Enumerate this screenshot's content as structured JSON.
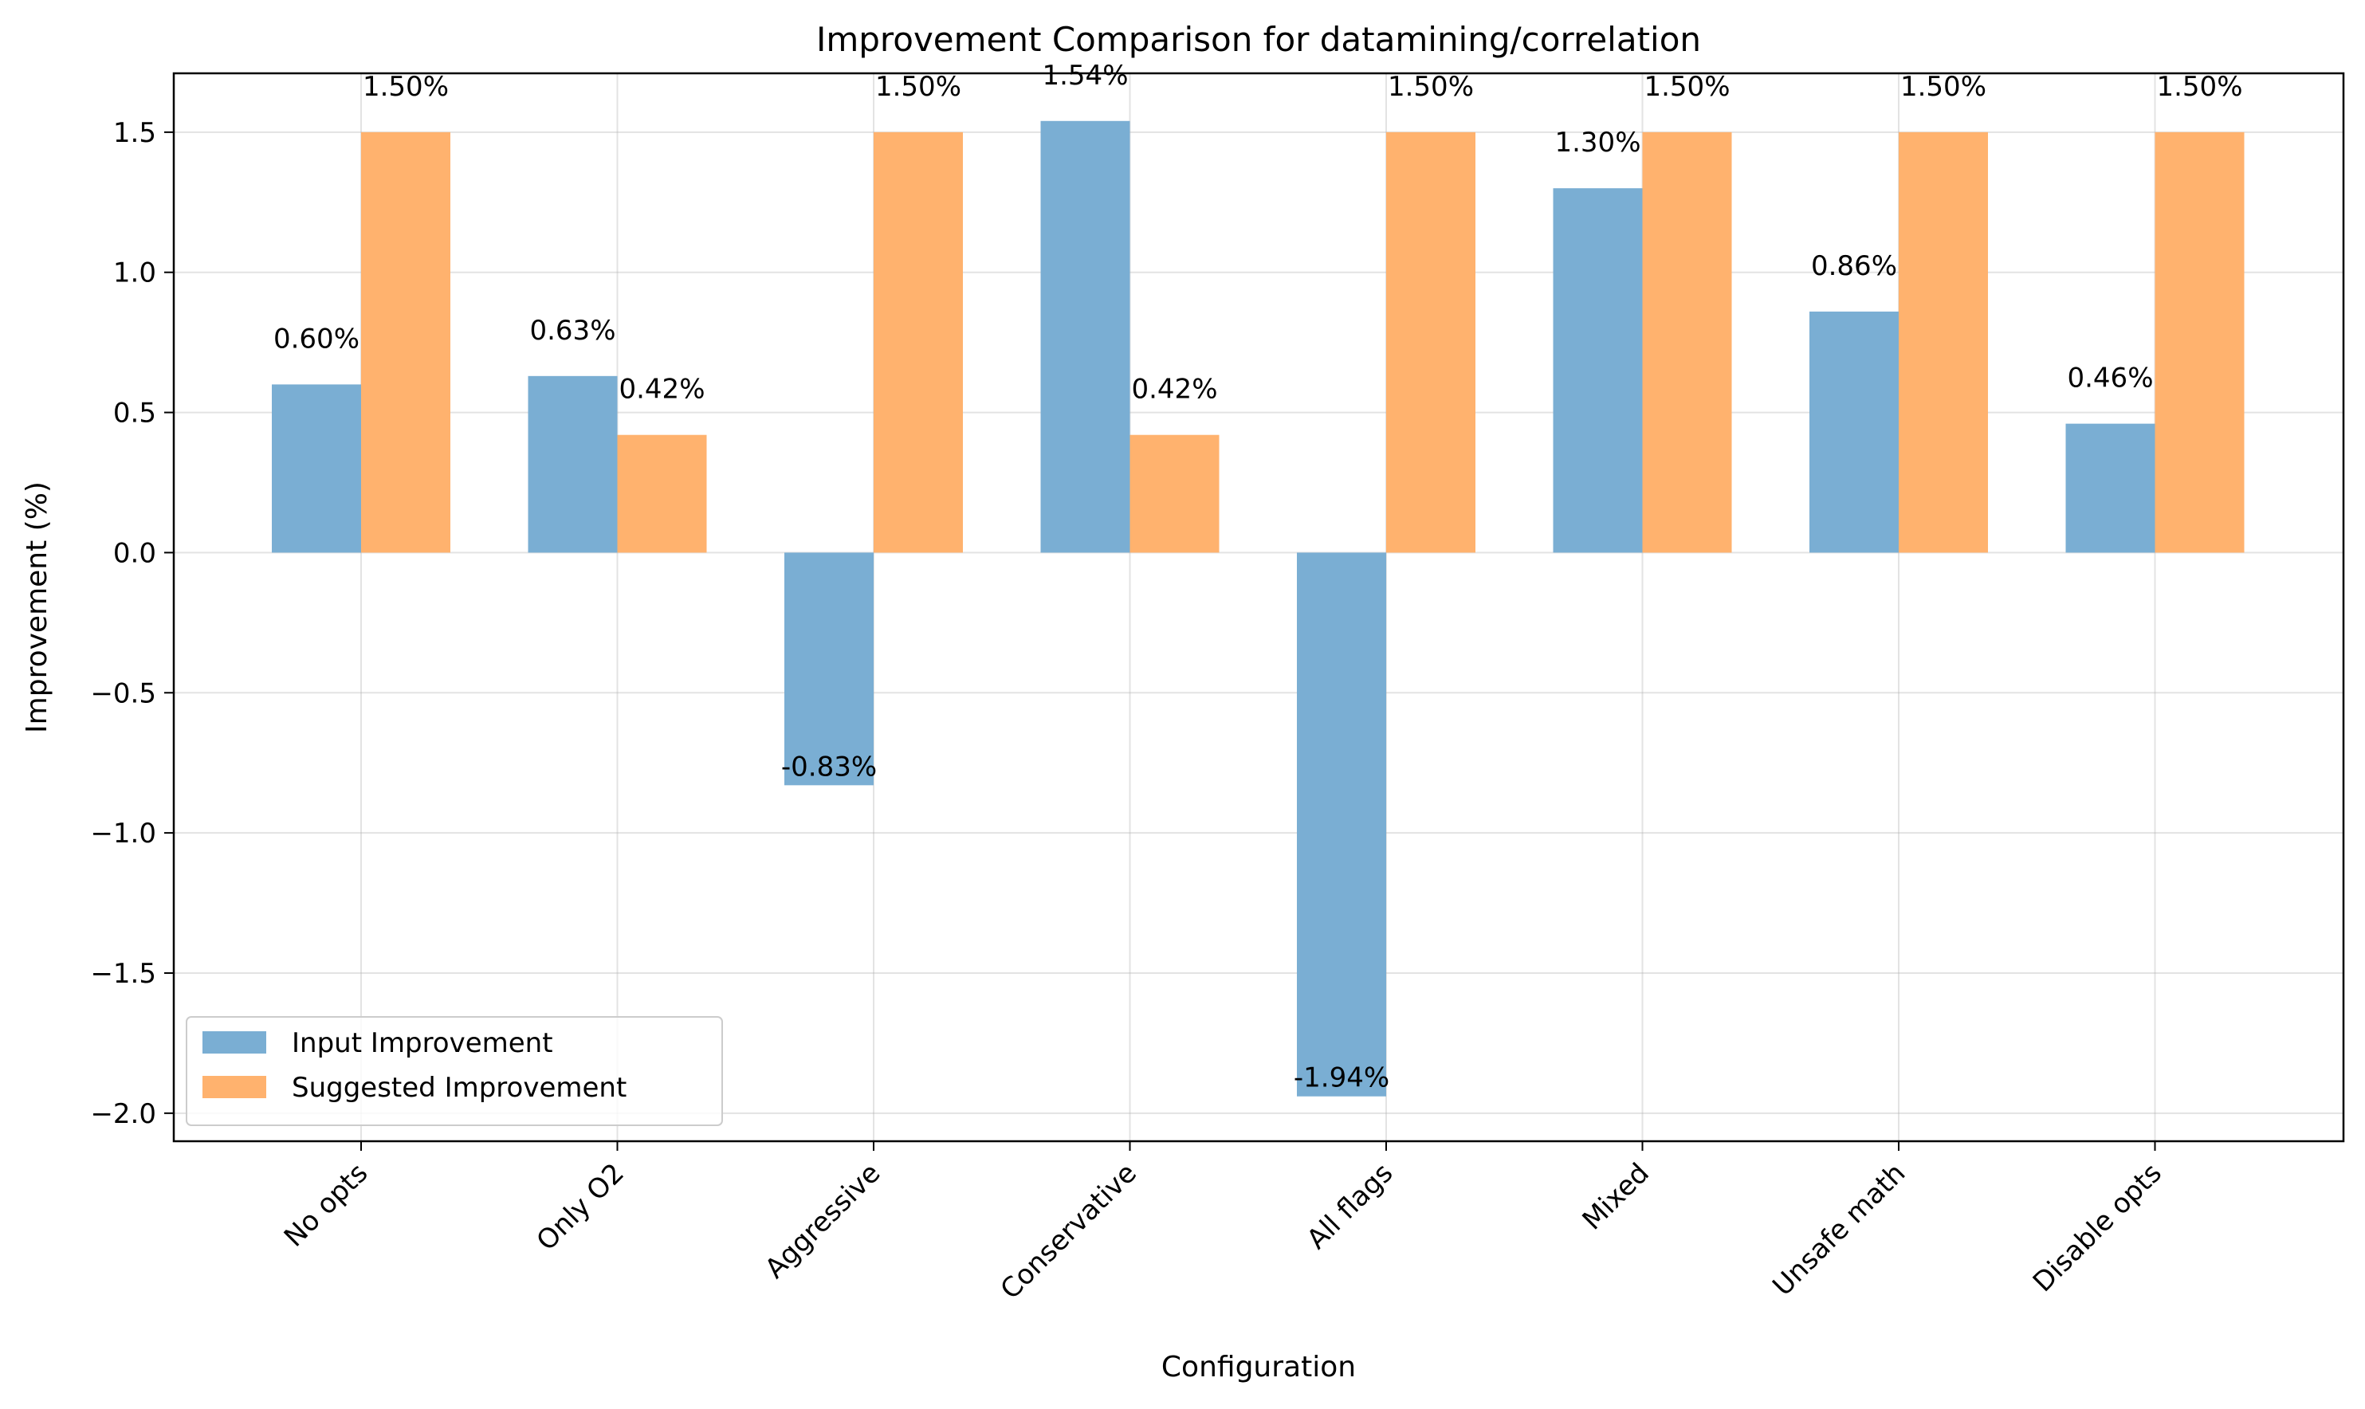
{
  "chart_data": {
    "type": "bar",
    "title": "Improvement Comparison for datamining/correlation",
    "xlabel": "Configuration",
    "ylabel": "Improvement (%)",
    "categories": [
      "No opts",
      "Only O2",
      "Aggressive",
      "Conservative",
      "All flags",
      "Mixed",
      "Unsafe math",
      "Disable opts"
    ],
    "series": [
      {
        "name": "Input Improvement",
        "color": "#7aaed3",
        "values": [
          0.6,
          0.63,
          -0.83,
          1.54,
          -1.94,
          1.3,
          0.86,
          0.46
        ],
        "labels": [
          "0.60%",
          "0.63%",
          "-0.83%",
          "1.54%",
          "-1.94%",
          "1.30%",
          "0.86%",
          "0.46%"
        ]
      },
      {
        "name": "Suggested Improvement",
        "color": "#ffb26e",
        "values": [
          1.5,
          0.42,
          1.5,
          0.42,
          1.5,
          1.5,
          1.5,
          1.5
        ],
        "labels": [
          "1.50%",
          "0.42%",
          "1.50%",
          "0.42%",
          "1.50%",
          "1.50%",
          "1.50%",
          "1.50%"
        ]
      }
    ],
    "ylim": [
      -2.1,
      1.71
    ],
    "yticks": [
      1.5,
      1.0,
      0.5,
      0.0,
      -0.5,
      -1.0,
      -1.5,
      -2.0
    ],
    "ytick_labels": [
      "1.5",
      "1.0",
      "0.5",
      "0.0",
      "−0.5",
      "−1.0",
      "−1.5",
      "−2.0"
    ],
    "grid": true,
    "legend_position": "lower-left"
  }
}
